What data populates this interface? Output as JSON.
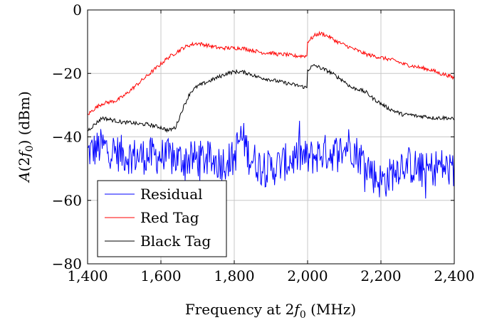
{
  "chart_data": {
    "type": "line",
    "xlabel": "Frequency at 2f0 (MHz)",
    "ylabel": "A(2f0) (dBm)",
    "xlim": [
      1400,
      2400
    ],
    "ylim": [
      -80,
      0
    ],
    "xticks": [
      1400,
      1600,
      1800,
      2000,
      2200,
      2400
    ],
    "xtick_labels": [
      "1,400",
      "1,600",
      "1,800",
      "2,000",
      "2,200",
      "2,400"
    ],
    "yticks": [
      -80,
      -60,
      -40,
      -20,
      0
    ],
    "ytick_labels": [
      "−80",
      "−60",
      "−40",
      "−20",
      "0"
    ],
    "grid": true,
    "legend_position": "bottom-left",
    "series": [
      {
        "name": "Residual",
        "color": "#0000ff",
        "style": "noisy",
        "x": [
          1400,
          1440,
          1480,
          1520,
          1560,
          1600,
          1640,
          1680,
          1720,
          1760,
          1800,
          1810,
          1820,
          1830,
          1840,
          1860,
          1880,
          1900,
          1920,
          1940,
          1960,
          1980,
          2000,
          2020,
          2040,
          2060,
          2080,
          2100,
          2110,
          2120,
          2140,
          2160,
          2180,
          2200,
          2220,
          2240,
          2260,
          2280,
          2300,
          2320,
          2340,
          2360,
          2380,
          2400
        ],
        "y": [
          -45,
          -43,
          -45,
          -46,
          -46,
          -46,
          -47,
          -47,
          -47,
          -48,
          -47,
          -42,
          -40,
          -42,
          -46,
          -48,
          -50,
          -50,
          -49,
          -48,
          -47,
          -46,
          -47,
          -46,
          -45,
          -45,
          -45,
          -44,
          -42,
          -43,
          -46,
          -48,
          -52,
          -54,
          -53,
          -50,
          -48,
          -49,
          -50,
          -51,
          -50,
          -49,
          -50,
          -51
        ],
        "noise": 6
      },
      {
        "name": "Red Tag",
        "color": "#ff0000",
        "style": "smooth",
        "x": [
          1400,
          1420,
          1440,
          1460,
          1480,
          1500,
          1520,
          1540,
          1560,
          1580,
          1600,
          1620,
          1640,
          1660,
          1680,
          1700,
          1720,
          1740,
          1760,
          1780,
          1800,
          1820,
          1840,
          1860,
          1880,
          1900,
          1920,
          1940,
          1960,
          1980,
          1998,
          2000,
          2010,
          2020,
          2030,
          2040,
          2060,
          2080,
          2100,
          2120,
          2140,
          2160,
          2180,
          2200,
          2220,
          2240,
          2260,
          2280,
          2300,
          2320,
          2340,
          2360,
          2380,
          2400
        ],
        "y": [
          -33,
          -31,
          -29.5,
          -29,
          -28.5,
          -27,
          -25,
          -23,
          -21,
          -19,
          -17,
          -15,
          -13.5,
          -12,
          -11,
          -10.5,
          -11,
          -11.5,
          -12,
          -12,
          -12,
          -12,
          -12.5,
          -13,
          -13.5,
          -13.5,
          -14,
          -14,
          -14.5,
          -14.5,
          -14.5,
          -10,
          -9,
          -8,
          -7.5,
          -7.5,
          -8.5,
          -10,
          -11,
          -12,
          -13,
          -14,
          -14.5,
          -15,
          -15.5,
          -16,
          -17,
          -17.5,
          -18,
          -18.5,
          -19,
          -20,
          -20.5,
          -21.5
        ]
      },
      {
        "name": "Black Tag",
        "color": "#000000",
        "style": "smooth",
        "x": [
          1400,
          1420,
          1440,
          1460,
          1480,
          1500,
          1520,
          1540,
          1560,
          1580,
          1600,
          1620,
          1640,
          1660,
          1680,
          1700,
          1720,
          1740,
          1760,
          1780,
          1800,
          1820,
          1840,
          1860,
          1880,
          1900,
          1920,
          1940,
          1960,
          1980,
          1998,
          2000,
          2010,
          2020,
          2040,
          2060,
          2080,
          2100,
          2120,
          2140,
          2160,
          2180,
          2200,
          2220,
          2240,
          2260,
          2280,
          2300,
          2320,
          2340,
          2360,
          2380,
          2400
        ],
        "y": [
          -38,
          -36,
          -34,
          -34.5,
          -35,
          -35.5,
          -35.5,
          -36,
          -36,
          -36.5,
          -37,
          -38,
          -37,
          -31,
          -26,
          -24,
          -23,
          -22,
          -21,
          -20,
          -19.5,
          -19.5,
          -20,
          -21,
          -21.5,
          -22,
          -22.5,
          -23,
          -23.5,
          -24,
          -24.5,
          -19,
          -18,
          -17.5,
          -18.5,
          -19.5,
          -21,
          -22.5,
          -24.5,
          -25,
          -26,
          -28,
          -29.5,
          -31,
          -32,
          -33,
          -33,
          -33.5,
          -33.5,
          -34,
          -34,
          -34,
          -34.5
        ]
      }
    ]
  }
}
